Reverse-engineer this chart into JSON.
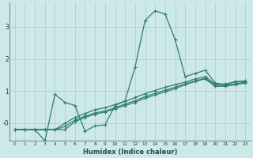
{
  "xlabel": "Humidex (Indice chaleur)",
  "background_color": "#cce8e8",
  "grid_color": "#aacccc",
  "line_color": "#2e7d6e",
  "xlim": [
    -0.5,
    23.5
  ],
  "ylim": [
    -0.55,
    3.75
  ],
  "yticks": [
    0,
    1,
    2,
    3
  ],
  "ytick_labels": [
    "-0",
    "1",
    "2",
    "3"
  ],
  "series": [
    {
      "x": [
        0,
        1,
        2,
        3,
        4,
        5,
        6,
        7,
        8,
        9,
        10,
        11,
        12,
        13,
        14,
        15,
        16,
        17,
        18,
        19,
        20,
        21,
        22,
        23
      ],
      "y": [
        -0.2,
        -0.2,
        -0.2,
        -0.55,
        0.9,
        0.65,
        0.55,
        -0.25,
        -0.08,
        -0.05,
        0.55,
        0.7,
        1.75,
        3.2,
        3.5,
        3.4,
        2.6,
        1.45,
        1.55,
        1.65,
        1.25,
        1.2,
        1.3,
        1.3
      ]
    },
    {
      "x": [
        0,
        1,
        2,
        3,
        4,
        5,
        6,
        7,
        8,
        9,
        10,
        11,
        12,
        13,
        14,
        15,
        16,
        17,
        18,
        19,
        20,
        21,
        22,
        23
      ],
      "y": [
        -0.2,
        -0.2,
        -0.2,
        -0.2,
        -0.2,
        -0.2,
        0.05,
        0.18,
        0.28,
        0.35,
        0.45,
        0.55,
        0.65,
        0.78,
        0.88,
        0.98,
        1.08,
        1.2,
        1.3,
        1.38,
        1.15,
        1.15,
        1.2,
        1.25
      ]
    },
    {
      "x": [
        0,
        1,
        2,
        3,
        4,
        5,
        6,
        7,
        8,
        9,
        10,
        11,
        12,
        13,
        14,
        15,
        16,
        17,
        18,
        19,
        20,
        21,
        22,
        23
      ],
      "y": [
        -0.2,
        -0.2,
        -0.2,
        -0.2,
        -0.2,
        -0.1,
        0.1,
        0.22,
        0.32,
        0.38,
        0.48,
        0.6,
        0.7,
        0.83,
        0.93,
        1.03,
        1.12,
        1.22,
        1.32,
        1.4,
        1.18,
        1.18,
        1.22,
        1.28
      ]
    },
    {
      "x": [
        0,
        1,
        2,
        3,
        4,
        5,
        6,
        7,
        8,
        9,
        10,
        11,
        12,
        13,
        14,
        15,
        16,
        17,
        18,
        19,
        20,
        21,
        22,
        23
      ],
      "y": [
        -0.2,
        -0.2,
        -0.2,
        -0.2,
        -0.2,
        0.0,
        0.18,
        0.3,
        0.42,
        0.48,
        0.58,
        0.68,
        0.8,
        0.92,
        1.02,
        1.12,
        1.2,
        1.28,
        1.38,
        1.45,
        1.22,
        1.22,
        1.28,
        1.32
      ]
    }
  ]
}
